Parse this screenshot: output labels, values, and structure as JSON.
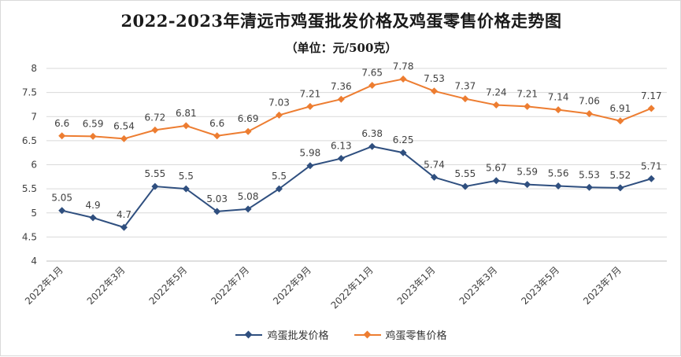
{
  "title": "2022-2023年清远市鸡蛋批发价格及鸡蛋零售价格走势图",
  "subtitle": "（单位：元/500克）",
  "colors": {
    "wholesale": "#2f4f7f",
    "retail": "#ed7d31",
    "grid": "#d9d9d9",
    "axis_text": "#404040"
  },
  "legend": [
    {
      "label": "鸡蛋批发价格",
      "color": "#2f4f7f",
      "marker": "diamond"
    },
    {
      "label": "鸡蛋零售价格",
      "color": "#ed7d31",
      "marker": "diamond"
    }
  ],
  "chart_data": {
    "type": "line",
    "title": "2022-2023年清远市鸡蛋批发价格及鸡蛋零售价格走势图",
    "subtitle": "（单位：元/500克）",
    "categories": [
      "2022年1月",
      "2022年2月",
      "2022年3月",
      "2022年4月",
      "2022年5月",
      "2022年6月",
      "2022年7月",
      "2022年8月",
      "2022年9月",
      "2022年10月",
      "2022年11月",
      "2022年12月",
      "2023年1月",
      "2023年2月",
      "2023年3月",
      "2023年4月",
      "2023年5月",
      "2023年6月",
      "2023年7月",
      "2023年8月"
    ],
    "tick_labels": [
      "2022年1月",
      "",
      "2022年3月",
      "",
      "2022年5月",
      "",
      "2022年7月",
      "",
      "2022年9月",
      "",
      "2022年11月",
      "",
      "2023年1月",
      "",
      "2023年3月",
      "",
      "2023年5月",
      "",
      "2023年7月",
      ""
    ],
    "series": [
      {
        "name": "鸡蛋批发价格",
        "values": [
          5.05,
          4.9,
          4.7,
          5.55,
          5.5,
          5.03,
          5.08,
          5.5,
          5.98,
          6.13,
          6.38,
          6.25,
          5.74,
          5.55,
          5.67,
          5.59,
          5.56,
          5.53,
          5.52,
          5.71
        ],
        "labels": [
          "5.05",
          "4.9",
          "4.7",
          "5.55",
          "5.5",
          "5.03",
          "5.08",
          "5.5",
          "5.98",
          "6.13",
          "6.38",
          "6.25",
          "5.74",
          "5.55",
          "5.67",
          "5.59",
          "5.56",
          "5.53",
          "5.52",
          "5.71"
        ]
      },
      {
        "name": "鸡蛋零售价格",
        "values": [
          6.6,
          6.59,
          6.54,
          6.72,
          6.81,
          6.6,
          6.69,
          7.03,
          7.21,
          7.36,
          7.65,
          7.78,
          7.53,
          7.37,
          7.24,
          7.21,
          7.14,
          7.06,
          6.91,
          7.17
        ],
        "labels": [
          "6.6",
          "6.59",
          "6.54",
          "6.72",
          "6.81",
          "6.6",
          "6.69",
          "7.03",
          "7.21",
          "7.36",
          "7.65",
          "7.78",
          "7.53",
          "7.37",
          "7.24",
          "7.21",
          "7.14",
          "7.06",
          "6.91",
          "7.17"
        ]
      }
    ],
    "ylim": [
      4,
      8
    ],
    "yticks": [
      "4",
      "4.5",
      "5",
      "5.5",
      "6",
      "6.5",
      "7",
      "7.5",
      "8"
    ],
    "grid": true,
    "legend_position": "bottom"
  }
}
